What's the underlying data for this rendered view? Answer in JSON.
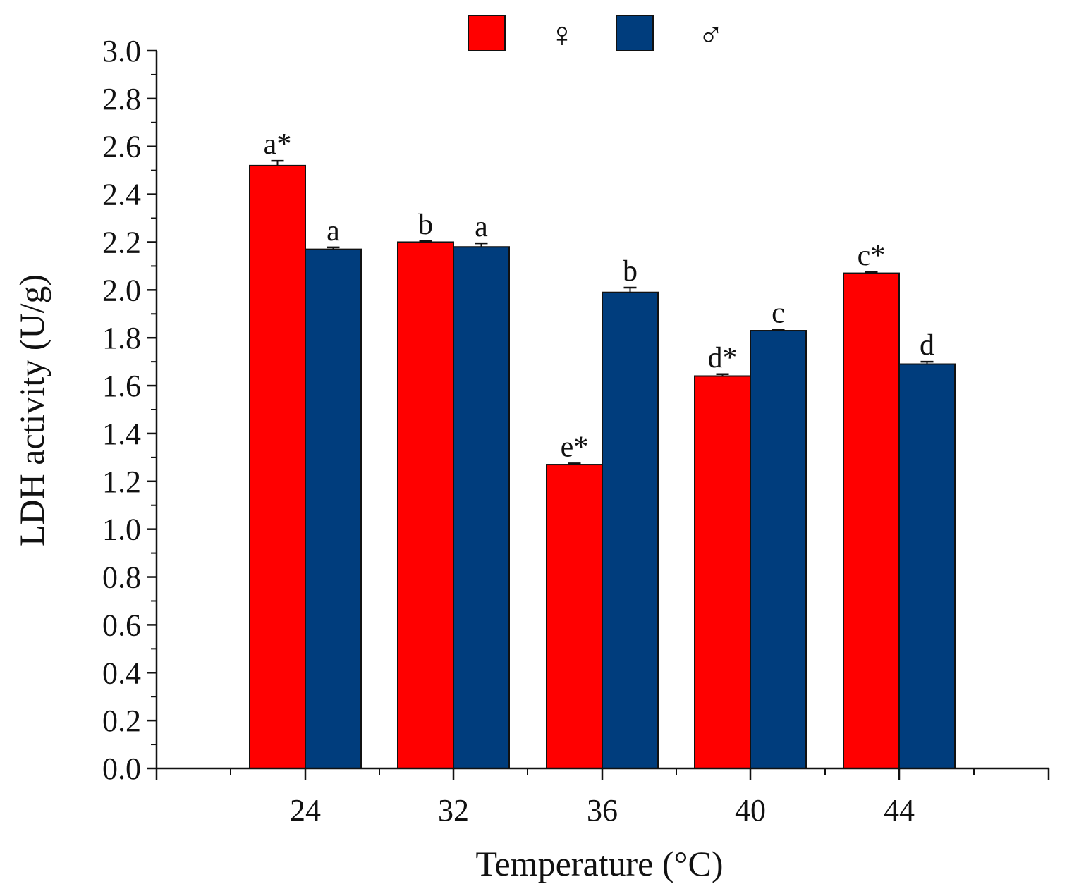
{
  "chart_data": {
    "type": "bar",
    "xlabel": "Temperature (°C)",
    "ylabel": "LDH activity (U/g)",
    "ylim": [
      0,
      3.0
    ],
    "y_ticks": [
      "0.0",
      "0.2",
      "0.4",
      "0.6",
      "0.8",
      "1.0",
      "1.2",
      "1.4",
      "1.6",
      "1.8",
      "2.0",
      "2.2",
      "2.4",
      "2.6",
      "2.8",
      "3.0"
    ],
    "categories": [
      "24",
      "32",
      "36",
      "40",
      "44"
    ],
    "series": [
      {
        "name": "♀",
        "color": "#ff0000",
        "values": [
          2.52,
          2.2,
          1.27,
          1.64,
          2.07
        ],
        "errors": [
          0.02,
          0.005,
          0.005,
          0.008,
          0.005
        ],
        "labels": [
          "a*",
          "b",
          "e*",
          "d*",
          "c*"
        ]
      },
      {
        "name": "♂",
        "color": "#003d7d",
        "values": [
          2.17,
          2.18,
          1.99,
          1.83,
          1.69
        ],
        "errors": [
          0.008,
          0.015,
          0.02,
          0.005,
          0.01
        ],
        "labels": [
          "a",
          "a",
          "b",
          "c",
          "d"
        ]
      }
    ],
    "legend_position": "top-center"
  }
}
